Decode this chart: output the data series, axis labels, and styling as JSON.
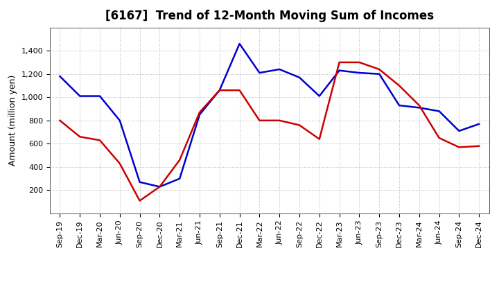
{
  "title": "[6167]  Trend of 12-Month Moving Sum of Incomes",
  "ylabel": "Amount (million yen)",
  "x_labels": [
    "Sep-19",
    "Dec-19",
    "Mar-20",
    "Jun-20",
    "Sep-20",
    "Dec-20",
    "Mar-21",
    "Jun-21",
    "Sep-21",
    "Dec-21",
    "Mar-22",
    "Jun-22",
    "Sep-22",
    "Dec-22",
    "Mar-23",
    "Jun-23",
    "Sep-23",
    "Dec-23",
    "Mar-24",
    "Jun-24",
    "Sep-24",
    "Dec-24"
  ],
  "ordinary_income": [
    1180,
    1010,
    1010,
    800,
    270,
    230,
    300,
    850,
    1060,
    1460,
    1210,
    1240,
    1170,
    1010,
    1230,
    1210,
    1200,
    930,
    910,
    880,
    710,
    770
  ],
  "net_income": [
    800,
    660,
    630,
    430,
    110,
    230,
    460,
    870,
    1060,
    1060,
    800,
    800,
    760,
    640,
    1300,
    1300,
    1240,
    1100,
    930,
    650,
    570,
    580
  ],
  "ordinary_color": "#0000cc",
  "net_color": "#cc0000",
  "ylim": [
    0,
    1600
  ],
  "yticks": [
    200,
    400,
    600,
    800,
    1000,
    1200,
    1400
  ],
  "background_color": "#ffffff",
  "grid_color": "#aaaaaa",
  "title_fontsize": 12,
  "axis_fontsize": 9,
  "tick_fontsize": 8,
  "legend_fontsize": 9,
  "line_width": 1.8
}
